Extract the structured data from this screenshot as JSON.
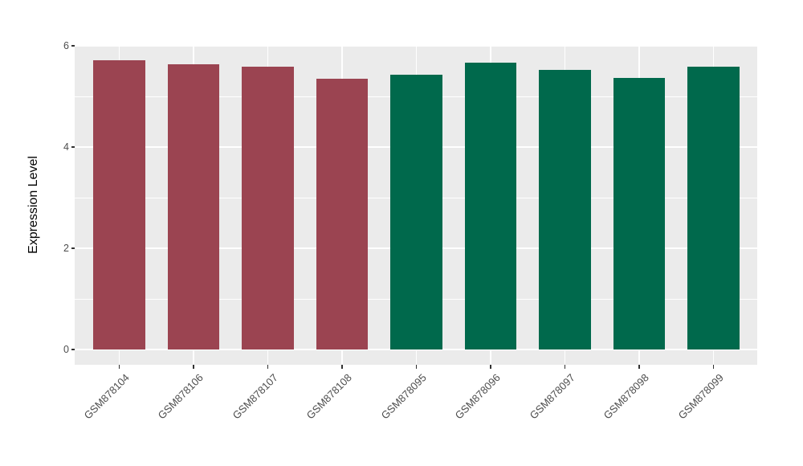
{
  "figure": {
    "background": "#FFFFFF"
  },
  "chart_data": {
    "type": "bar",
    "title": "",
    "xlabel": "",
    "ylabel": "Expression Level",
    "categories": [
      "GSM878104",
      "GSM878106",
      "GSM878107",
      "GSM878108",
      "GSM878095",
      "GSM878096",
      "GSM878097",
      "GSM878098",
      "GSM878099"
    ],
    "values": [
      5.72,
      5.63,
      5.59,
      5.35,
      5.43,
      5.66,
      5.52,
      5.37,
      5.59
    ],
    "bar_colors": [
      "#9B4451",
      "#9B4451",
      "#9B4451",
      "#9B4451",
      "#00694C",
      "#00694C",
      "#00694C",
      "#00694C",
      "#00694C"
    ],
    "group_colors": {
      "left_group": "#9B4451",
      "right_group": "#00694C"
    },
    "yticks": [
      0,
      2,
      4,
      6
    ],
    "yticks_minor": [
      1,
      3,
      5
    ],
    "ylim": [
      -0.29,
      6.02
    ],
    "x_tick_rotation_deg": 45,
    "legend": "none",
    "grid": "on",
    "panel_background": "#EBEBEB",
    "gridline_color": "#FFFFFF",
    "axis_text_color": "#4D4D4D",
    "axis_title_color": "#000000",
    "tick_mark_color": "#333333"
  }
}
